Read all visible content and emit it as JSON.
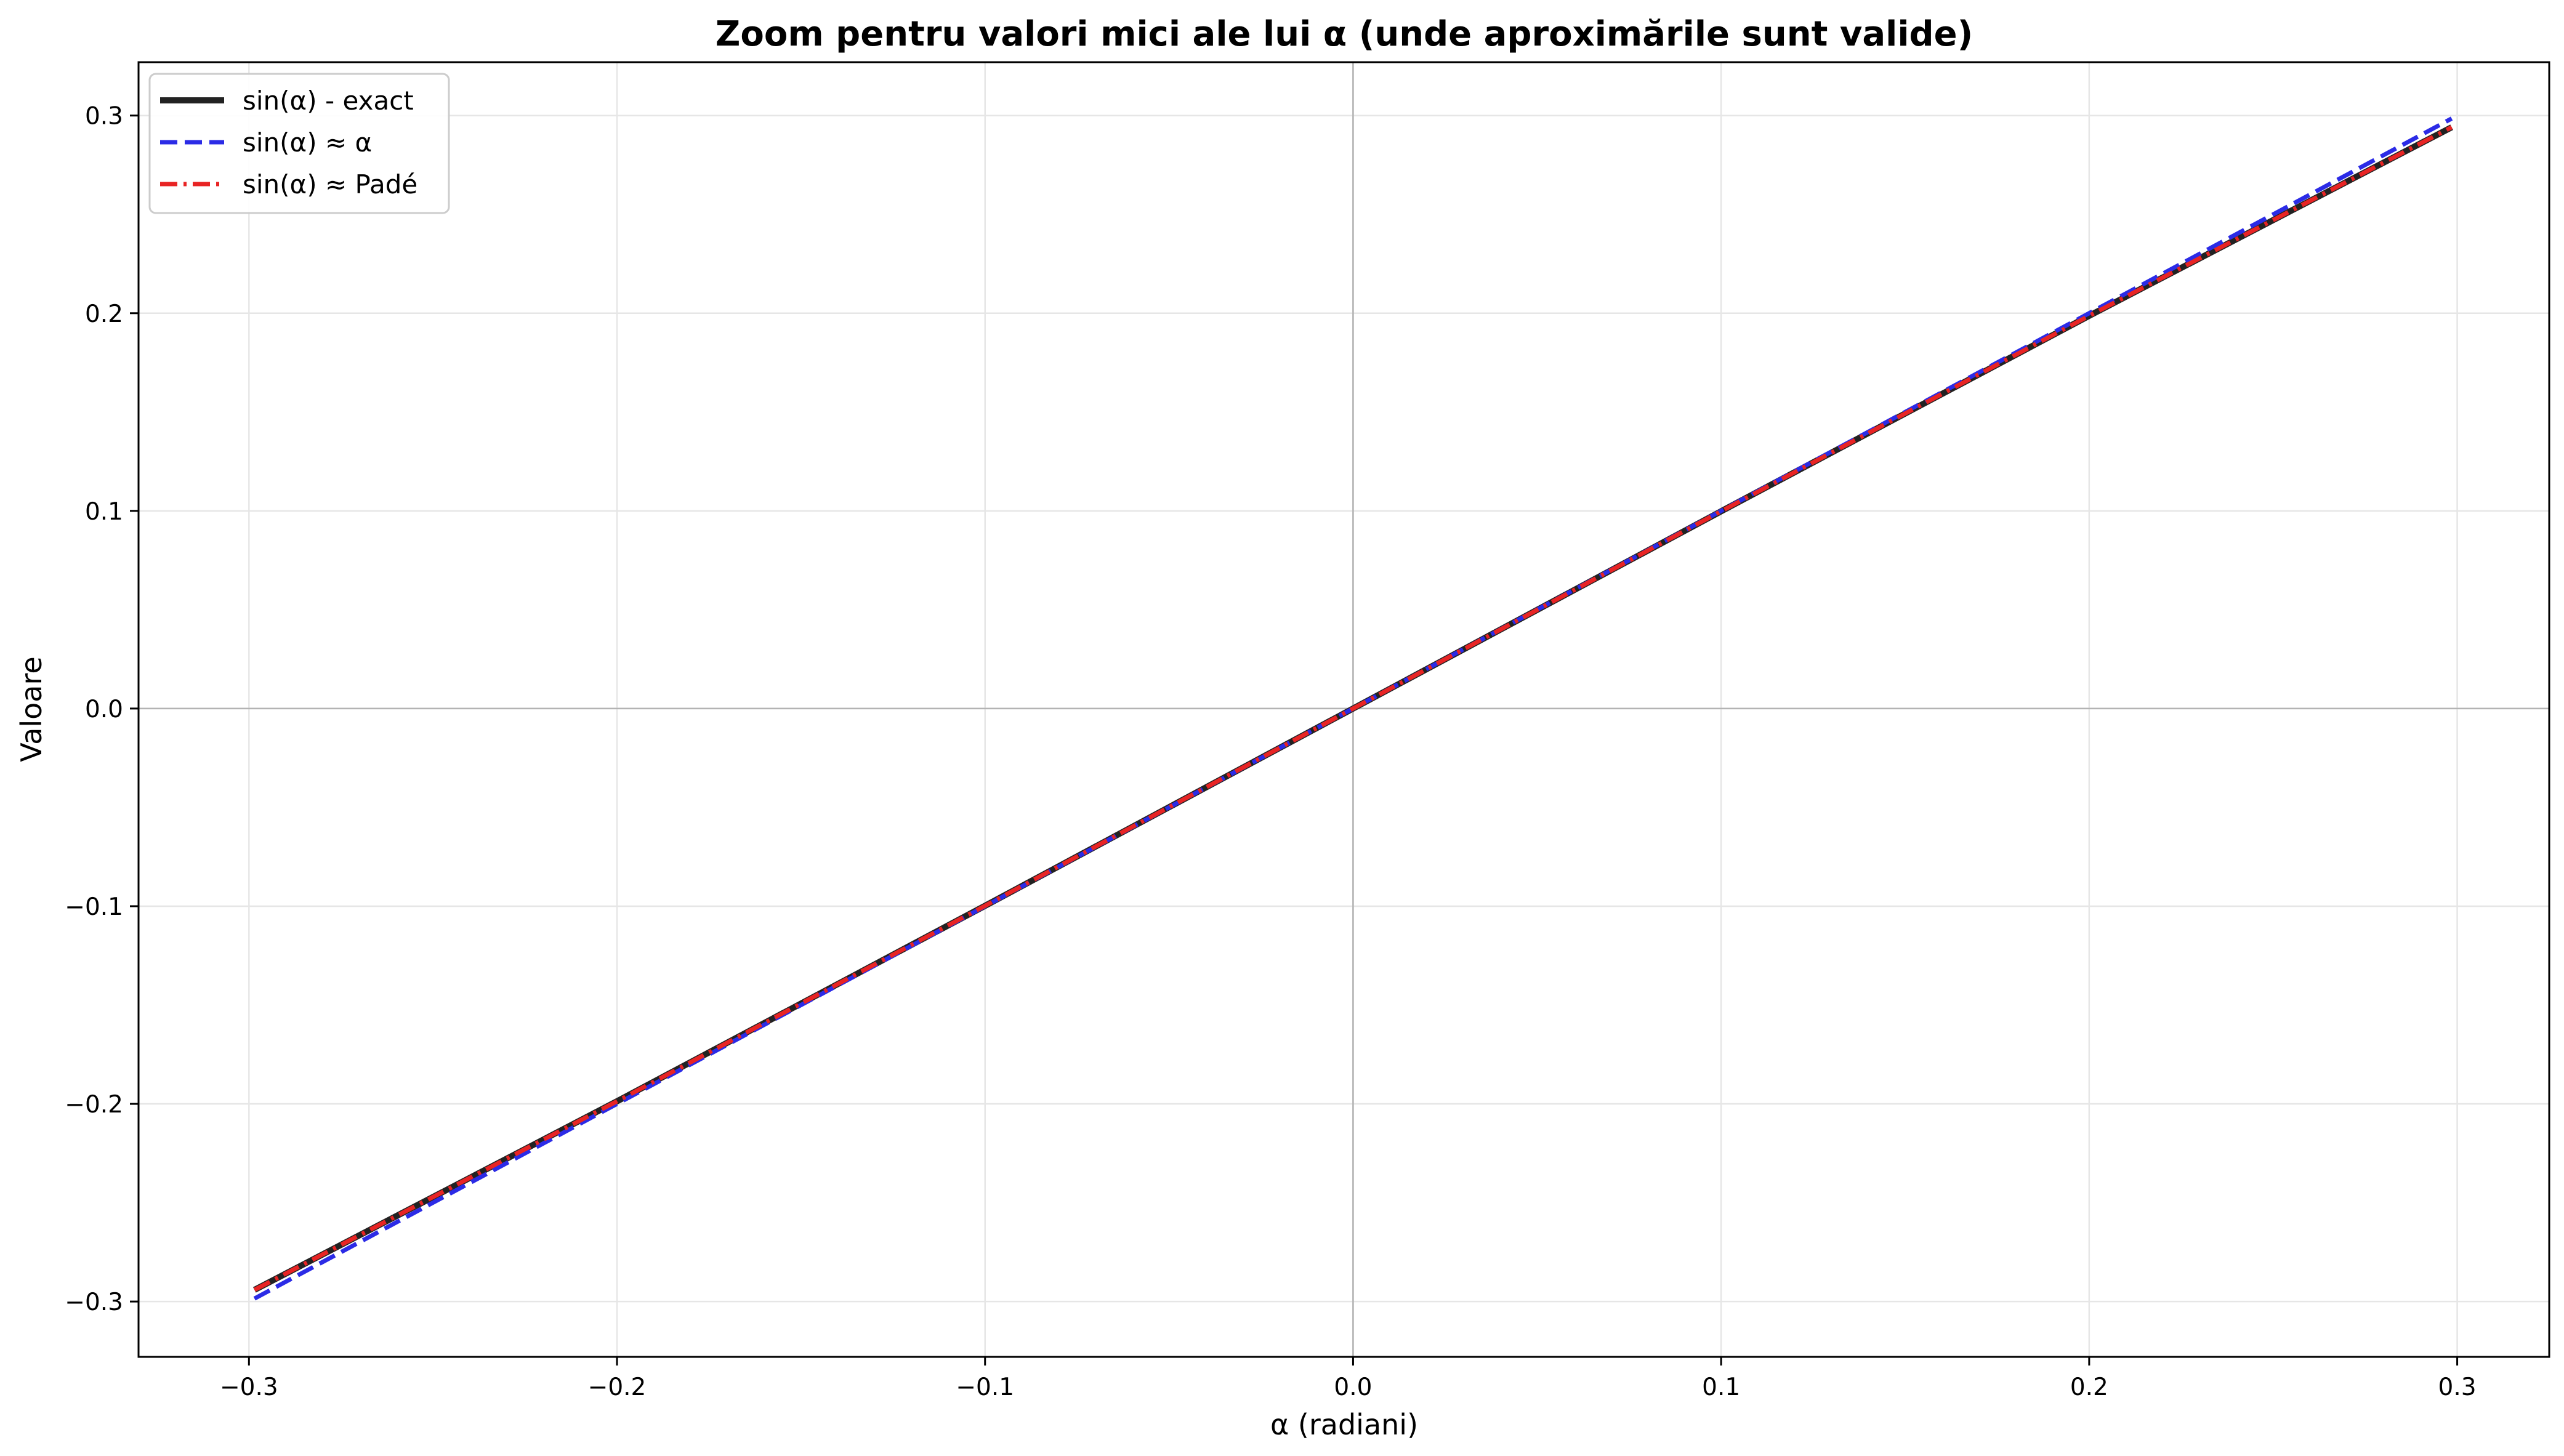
{
  "chart_data": {
    "type": "line",
    "title": "Zoom pentru valori mici ale lui α (unde aproximările sunt valide)",
    "xlabel": "α (radiani)",
    "ylabel": "Valoare",
    "xlim": [
      -0.33,
      0.325
    ],
    "ylim": [
      -0.328,
      0.327
    ],
    "xticks": [
      -0.3,
      -0.2,
      -0.1,
      0.0,
      0.1,
      0.2,
      0.3
    ],
    "xtick_labels": [
      "−0.3",
      "−0.2",
      "−0.1",
      "0.0",
      "0.1",
      "0.2",
      "0.3"
    ],
    "yticks": [
      -0.3,
      -0.2,
      -0.1,
      0.0,
      0.1,
      0.2,
      0.3
    ],
    "ytick_labels": [
      "−0.3",
      "−0.2",
      "−0.1",
      "0.0",
      "0.1",
      "0.2",
      "0.3"
    ],
    "grid": true,
    "zero_lines": true,
    "legend_position": "top-left",
    "series": [
      {
        "name": "sin(α) - exact",
        "color": "#222222",
        "style": "solid",
        "x": [
          -0.2985,
          -0.2,
          -0.1,
          0.0,
          0.1,
          0.2,
          0.2985
        ],
        "y": [
          -0.2941,
          -0.1987,
          -0.0998,
          0.0,
          0.0998,
          0.1987,
          0.2941
        ]
      },
      {
        "name": "sin(α) ≈ α",
        "color": "#2b2be6",
        "style": "dashed",
        "x": [
          -0.2985,
          -0.2,
          -0.1,
          0.0,
          0.1,
          0.2,
          0.2985
        ],
        "y": [
          -0.2985,
          -0.2,
          -0.1,
          0.0,
          0.1,
          0.2,
          0.2985
        ]
      },
      {
        "name": "sin(α) ≈ Padé",
        "color": "#e82424",
        "style": "dashdot",
        "x": [
          -0.2985,
          -0.2,
          -0.1,
          0.0,
          0.1,
          0.2,
          0.2985
        ],
        "y": [
          -0.2941,
          -0.1987,
          -0.0998,
          0.0,
          0.0998,
          0.1987,
          0.2941
        ]
      }
    ]
  }
}
